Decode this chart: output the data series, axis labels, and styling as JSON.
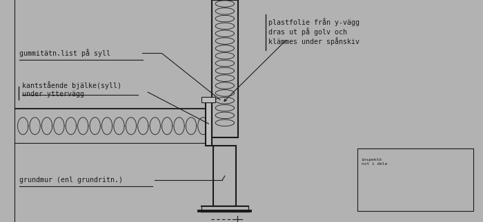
{
  "bg_color": "#b2b2b2",
  "line_color": "#1a1a1a",
  "text_color": "#1a1a1a",
  "labels": {
    "gummitätn": "gummitätn.list på syll",
    "kantstående": "kantstående bjälke(syll)\nunder yttervägg",
    "grundmur": "grundmur (enl grundritn.)",
    "plastfolie": "plastfolie från y-vägg\ndras ut på golv och\nklämmes under spånskiv"
  }
}
